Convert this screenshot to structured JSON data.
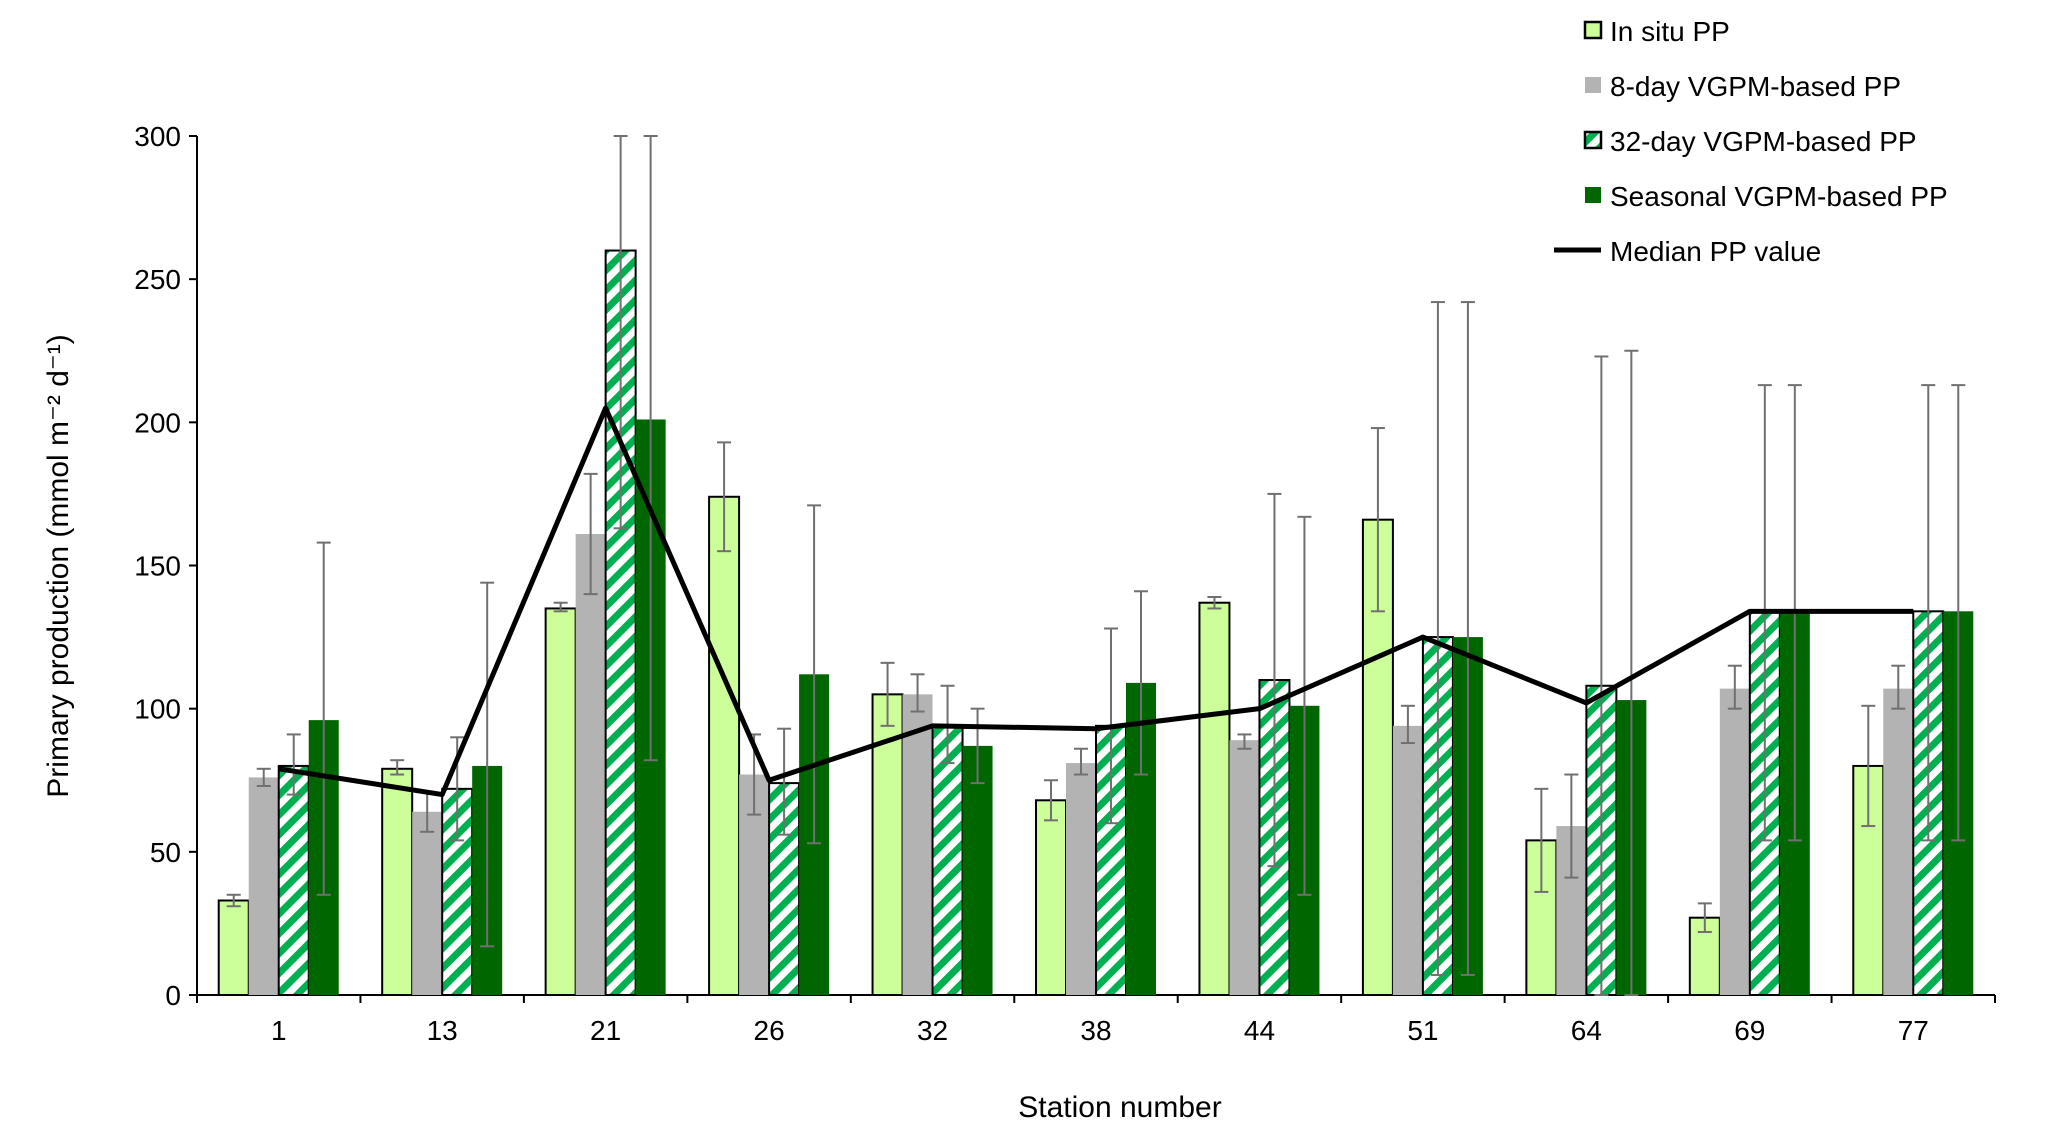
{
  "chart_data": {
    "type": "bar",
    "title": "",
    "xlabel": "Station number",
    "ylabel": "Primary production (mmol m⁻² d⁻¹)",
    "ylim": [
      0,
      300
    ],
    "yticks": [
      0,
      50,
      100,
      150,
      200,
      250,
      300
    ],
    "grid": false,
    "legend_position": "top-right",
    "categories": [
      "1",
      "13",
      "21",
      "26",
      "32",
      "38",
      "44",
      "51",
      "64",
      "69",
      "77"
    ],
    "series": [
      {
        "name": "In situ PP",
        "color": "#ccff99",
        "pattern": "solid-outlined",
        "values": [
          33,
          79,
          135,
          174,
          105,
          68,
          137,
          166,
          54,
          27,
          80
        ],
        "err_low": [
          31,
          77,
          134,
          155,
          94,
          61,
          135,
          134,
          36,
          22,
          59
        ],
        "err_high": [
          35,
          82,
          137,
          193,
          116,
          75,
          139,
          198,
          72,
          32,
          101
        ]
      },
      {
        "name": "8-day VGPM-based PP",
        "color": "#b3b3b3",
        "pattern": "solid",
        "values": [
          76,
          64,
          161,
          77,
          105,
          81,
          89,
          94,
          59,
          107,
          107
        ],
        "err_low": [
          73,
          57,
          140,
          63,
          99,
          77,
          86,
          88,
          41,
          100,
          100
        ],
        "err_high": [
          79,
          71,
          182,
          91,
          112,
          86,
          91,
          101,
          77,
          115,
          115
        ]
      },
      {
        "name": "32-day VGPM-based PP",
        "color": "#00b050",
        "pattern": "diagonal-hatch",
        "values": [
          80,
          72,
          260,
          74,
          94,
          94,
          110,
          125,
          108,
          134,
          134
        ],
        "err_low": [
          70,
          54,
          163,
          56,
          81,
          60,
          45,
          7,
          0,
          54,
          54
        ],
        "err_high": [
          91,
          90,
          300,
          93,
          108,
          128,
          175,
          242,
          223,
          213,
          213
        ]
      },
      {
        "name": "Seasonal VGPM-based PP",
        "color": "#006600",
        "pattern": "solid",
        "values": [
          96,
          80,
          201,
          112,
          87,
          109,
          101,
          125,
          103,
          134,
          134
        ],
        "err_low": [
          35,
          17,
          82,
          53,
          74,
          77,
          35,
          7,
          0,
          54,
          54
        ],
        "err_high": [
          158,
          144,
          300,
          171,
          100,
          141,
          167,
          242,
          225,
          213,
          213
        ]
      }
    ],
    "line_series": {
      "name": "Median PP value",
      "color": "#000000",
      "values": [
        79,
        70,
        205,
        75,
        94,
        93,
        100,
        125,
        102,
        134,
        134
      ]
    }
  }
}
